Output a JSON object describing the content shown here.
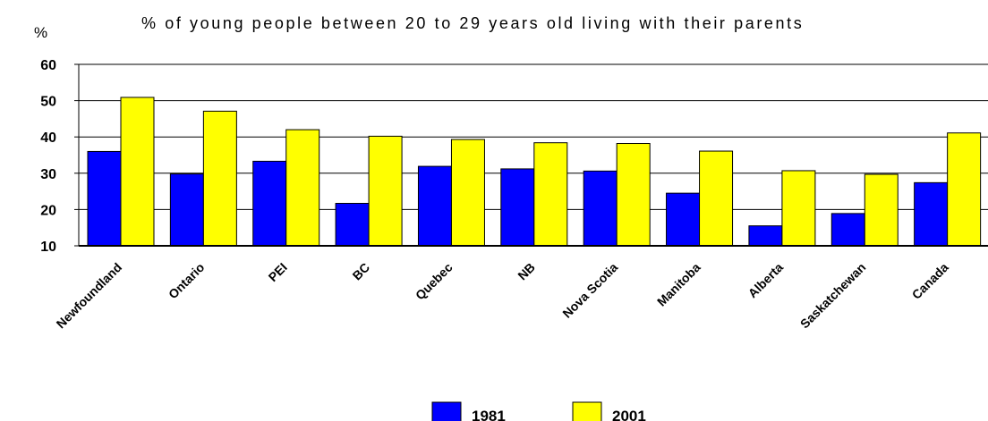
{
  "chart_data": {
    "type": "bar",
    "title": "% of young people between 20 to 29 years old living with their parents",
    "ylabel": "%",
    "ylim": [
      10,
      60
    ],
    "yticks": [
      "10",
      "20",
      "30",
      "40",
      "50",
      "60"
    ],
    "grid": true,
    "legend_position": "bottom",
    "categories": [
      "Newfoundland",
      "Ontario",
      "PEI",
      "BC",
      "Quebec",
      "NB",
      "Nova Scotia",
      "Manitoba",
      "Alberta",
      "Saskatchewan",
      "Canada"
    ],
    "series": [
      {
        "name": "1981",
        "color": "#0000ff",
        "values": [
          36.0,
          29.8,
          33.3,
          21.7,
          31.9,
          31.2,
          30.6,
          24.5,
          15.5,
          18.9,
          27.4
        ]
      },
      {
        "name": "2001",
        "color": "#ffff00",
        "values": [
          50.9,
          47.1,
          42.0,
          40.2,
          39.3,
          38.4,
          38.2,
          36.1,
          30.7,
          29.7,
          41.1
        ]
      }
    ]
  }
}
